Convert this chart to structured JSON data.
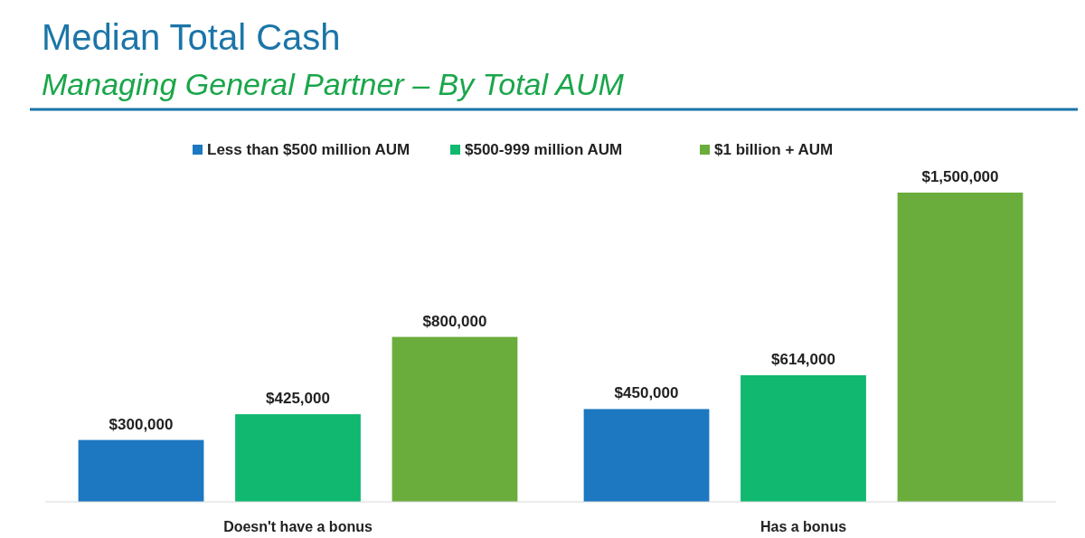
{
  "chart_data": {
    "type": "bar",
    "title": "Median Total Cash",
    "subtitle": "Managing General Partner – By Total AUM",
    "categories": [
      "Doesn't have a bonus",
      "Has a bonus"
    ],
    "legend": "top",
    "series": [
      {
        "name": "Less than $500 million AUM",
        "color": "#1d78c1",
        "values": [
          300000,
          450000
        ],
        "value_labels": [
          "$300,000",
          "$450,000"
        ]
      },
      {
        "name": "$500-999 million AUM",
        "color": "#10b870",
        "values": [
          425000,
          614000
        ],
        "value_labels": [
          "$425,000",
          "$614,000"
        ]
      },
      {
        "name": "$1 billion + AUM",
        "color": "#6aad3c",
        "values": [
          800000,
          1500000
        ],
        "value_labels": [
          "$800,000",
          "$1,500,000"
        ]
      }
    ]
  }
}
